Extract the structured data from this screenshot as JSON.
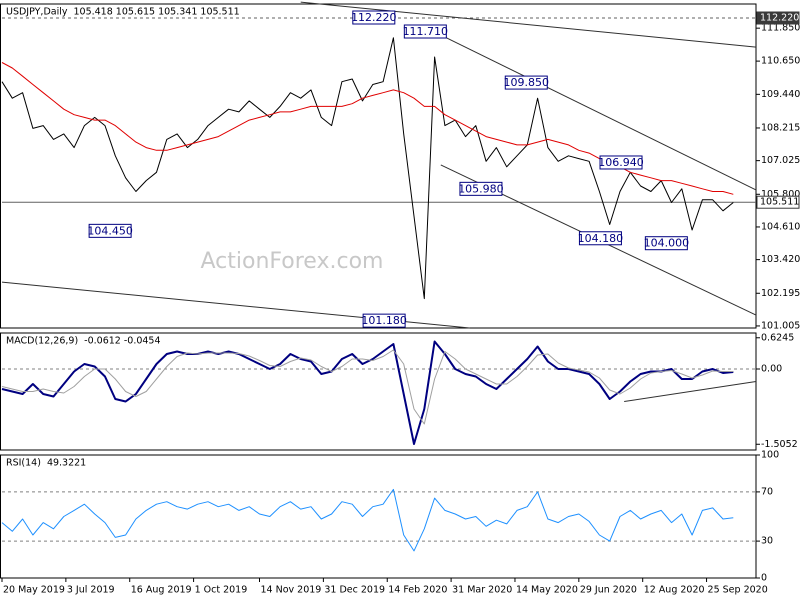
{
  "watermark": "ActionForex.com",
  "chart_data": [
    {
      "type": "line",
      "title": "USDJPY,Daily",
      "subtitle": "105.418 105.615 105.341 105.511",
      "xlim": [
        0,
        366
      ],
      "ylim": [
        100.93,
        112.73
      ],
      "x": [
        0,
        5,
        10,
        15,
        20,
        25,
        30,
        35,
        40,
        45,
        50,
        55,
        60,
        65,
        70,
        75,
        80,
        85,
        90,
        95,
        100,
        105,
        110,
        115,
        120,
        125,
        130,
        135,
        140,
        145,
        150,
        155,
        160,
        165,
        170,
        175,
        180,
        185,
        190,
        195,
        200,
        205,
        210,
        215,
        220,
        225,
        230,
        235,
        240,
        245,
        250,
        255,
        260,
        265,
        270,
        275,
        280,
        285,
        290,
        295,
        300,
        305,
        310,
        315,
        320,
        325,
        330,
        335,
        340,
        345,
        350,
        355
      ],
      "series": [
        {
          "color": "#000000",
          "width": 1,
          "values": [
            109.9,
            109.3,
            109.5,
            108.2,
            108.3,
            107.8,
            108.0,
            107.5,
            108.3,
            108.6,
            108.3,
            107.2,
            106.4,
            105.9,
            106.3,
            106.6,
            107.8,
            108.0,
            107.5,
            107.8,
            108.3,
            108.6,
            108.9,
            108.8,
            109.2,
            108.9,
            108.6,
            109.0,
            109.5,
            109.3,
            109.6,
            108.6,
            108.3,
            109.9,
            110.0,
            109.2,
            109.8,
            109.9,
            111.5,
            108.0,
            105.0,
            102.0,
            110.8,
            108.3,
            108.5,
            107.9,
            108.3,
            107.0,
            107.5,
            106.8,
            107.2,
            107.6,
            109.3,
            107.5,
            107.0,
            107.2,
            107.1,
            107.0,
            105.9,
            104.7,
            105.9,
            106.6,
            106.1,
            105.9,
            106.3,
            105.5,
            106.0,
            104.5,
            105.6,
            105.6,
            105.2,
            105.5
          ]
        },
        {
          "color": "#e00000",
          "width": 1,
          "values": [
            110.6,
            110.4,
            110.1,
            109.8,
            109.5,
            109.2,
            108.9,
            108.7,
            108.6,
            108.5,
            108.5,
            108.3,
            108.0,
            107.7,
            107.5,
            107.4,
            107.4,
            107.5,
            107.6,
            107.7,
            107.8,
            107.9,
            108.1,
            108.3,
            108.5,
            108.6,
            108.7,
            108.8,
            108.8,
            108.9,
            109.0,
            109.0,
            109.0,
            109.0,
            109.1,
            109.3,
            109.4,
            109.5,
            109.6,
            109.5,
            109.3,
            109.0,
            109.0,
            108.7,
            108.5,
            108.3,
            108.1,
            107.9,
            107.8,
            107.7,
            107.6,
            107.6,
            107.7,
            107.8,
            107.7,
            107.6,
            107.4,
            107.3,
            107.1,
            107.0,
            106.8,
            106.6,
            106.5,
            106.4,
            106.3,
            106.3,
            106.2,
            106.1,
            106.0,
            105.9,
            105.9,
            105.8
          ]
        }
      ],
      "yticks": [
        {
          "value": 111.85,
          "label": "111.850"
        },
        {
          "value": 110.65,
          "label": "110.650"
        },
        {
          "value": 109.44,
          "label": "109.440"
        },
        108.215,
        107.025,
        {
          "value": 105.8,
          "label": "105.800"
        },
        {
          "value": 104.61,
          "label": "104.610"
        },
        {
          "value": 103.42,
          "label": "103.420"
        },
        102.195,
        101.005
      ],
      "hlines": [
        {
          "value": 112.22,
          "label": "112.220",
          "style": "dashed",
          "boxed": true
        },
        {
          "value": 105.511,
          "style": "solid",
          "boxed": true
        }
      ],
      "annotations": [
        {
          "x": 180,
          "value": 112.22,
          "label": "112.220"
        },
        {
          "x": 205,
          "value": 111.71,
          "label": "111.710"
        },
        {
          "x": 254,
          "value": 109.85,
          "label": "109.850"
        },
        {
          "x": 300,
          "value": 106.94,
          "label": "106.940"
        },
        {
          "x": 232,
          "value": 105.98,
          "label": "105.980"
        },
        {
          "x": 290,
          "value": 104.18,
          "label": "104.180"
        },
        {
          "x": 322,
          "value": 104.0,
          "label": "104.000"
        },
        {
          "x": 52,
          "value": 104.45,
          "label": "104.450"
        },
        {
          "x": 185,
          "value": 101.18,
          "label": "101.180"
        }
      ],
      "trendlines": [
        {
          "x": [
            145,
            366
          ],
          "values": [
            112.8,
            111.16
          ]
        },
        {
          "x": [
            213,
            366
          ],
          "values": [
            111.6,
            105.96
          ]
        },
        {
          "x": [
            213,
            366
          ],
          "values": [
            106.87,
            101.4
          ]
        },
        {
          "x": [
            0,
            227
          ],
          "values": [
            102.6,
            100.93
          ]
        }
      ]
    },
    {
      "type": "line",
      "title": "MACD(12,26,9)",
      "subtitle": "-0.0612 -0.0454",
      "xlim": [
        0,
        366
      ],
      "ylim": [
        -1.62,
        0.72
      ],
      "x": [
        0,
        5,
        10,
        15,
        20,
        25,
        30,
        35,
        40,
        45,
        50,
        55,
        60,
        65,
        70,
        75,
        80,
        85,
        90,
        95,
        100,
        105,
        110,
        115,
        120,
        125,
        130,
        135,
        140,
        145,
        150,
        155,
        160,
        165,
        170,
        175,
        180,
        185,
        190,
        195,
        200,
        205,
        210,
        215,
        220,
        225,
        230,
        235,
        240,
        245,
        250,
        255,
        260,
        265,
        270,
        275,
        280,
        285,
        290,
        295,
        300,
        305,
        310,
        315,
        320,
        325,
        330,
        335,
        340,
        345,
        350,
        355
      ],
      "series": [
        {
          "color": "#000080",
          "width": 2,
          "values": [
            -0.4,
            -0.45,
            -0.5,
            -0.3,
            -0.5,
            -0.55,
            -0.3,
            -0.05,
            0.1,
            0.05,
            -0.15,
            -0.6,
            -0.65,
            -0.5,
            -0.2,
            0.1,
            0.3,
            0.35,
            0.3,
            0.3,
            0.35,
            0.3,
            0.35,
            0.3,
            0.2,
            0.1,
            0.0,
            0.1,
            0.3,
            0.2,
            0.15,
            -0.1,
            -0.05,
            0.2,
            0.3,
            0.1,
            0.2,
            0.35,
            0.5,
            -0.5,
            -1.5,
            -0.8,
            0.55,
            0.3,
            0.0,
            -0.1,
            -0.15,
            -0.3,
            -0.4,
            -0.2,
            0.0,
            0.2,
            0.45,
            0.15,
            0.0,
            0.0,
            -0.05,
            -0.1,
            -0.3,
            -0.6,
            -0.45,
            -0.25,
            -0.1,
            -0.05,
            -0.05,
            0.0,
            -0.2,
            -0.2,
            -0.05,
            0.0,
            -0.08,
            -0.06
          ]
        },
        {
          "color": "#a0a0a0",
          "width": 1,
          "values": [
            -0.35,
            -0.4,
            -0.45,
            -0.45,
            -0.4,
            -0.45,
            -0.48,
            -0.35,
            -0.15,
            0.0,
            0.0,
            -0.2,
            -0.45,
            -0.55,
            -0.45,
            -0.2,
            0.05,
            0.25,
            0.32,
            0.3,
            0.32,
            0.32,
            0.32,
            0.31,
            0.26,
            0.17,
            0.07,
            0.05,
            0.15,
            0.22,
            0.18,
            0.05,
            -0.05,
            0.05,
            0.2,
            0.2,
            0.17,
            0.25,
            0.38,
            0.1,
            -0.8,
            -1.1,
            -0.2,
            0.35,
            0.2,
            0.0,
            -0.1,
            -0.2,
            -0.3,
            -0.3,
            -0.15,
            0.05,
            0.28,
            0.3,
            0.12,
            0.02,
            -0.02,
            -0.06,
            -0.18,
            -0.42,
            -0.5,
            -0.38,
            -0.2,
            -0.08,
            -0.05,
            -0.03,
            -0.1,
            -0.18,
            -0.12,
            -0.04,
            -0.05,
            -0.05
          ]
        }
      ],
      "yticks": [
        0.6245,
        {
          "value": 0,
          "label": "0.00"
        },
        -1.5052
      ],
      "hlines": [
        {
          "value": 0,
          "style": "dashed"
        }
      ],
      "trendlines": [
        {
          "x": [
            302,
            366
          ],
          "values": [
            -0.65,
            -0.25
          ]
        }
      ]
    },
    {
      "type": "line",
      "title": "RSI(14)",
      "subtitle": "49.3221",
      "xlim": [
        0,
        366
      ],
      "ylim": [
        0,
        100
      ],
      "x": [
        0,
        5,
        10,
        15,
        20,
        25,
        30,
        35,
        40,
        45,
        50,
        55,
        60,
        65,
        70,
        75,
        80,
        85,
        90,
        95,
        100,
        105,
        110,
        115,
        120,
        125,
        130,
        135,
        140,
        145,
        150,
        155,
        160,
        165,
        170,
        175,
        180,
        185,
        190,
        195,
        200,
        205,
        210,
        215,
        220,
        225,
        230,
        235,
        240,
        245,
        250,
        255,
        260,
        265,
        270,
        275,
        280,
        285,
        290,
        295,
        300,
        305,
        310,
        315,
        320,
        325,
        330,
        335,
        340,
        345,
        350,
        355
      ],
      "series": [
        {
          "color": "#1e90ff",
          "width": 1,
          "values": [
            45,
            38,
            48,
            35,
            45,
            40,
            50,
            55,
            60,
            52,
            45,
            33,
            35,
            48,
            55,
            60,
            62,
            58,
            56,
            60,
            62,
            58,
            60,
            55,
            58,
            52,
            50,
            58,
            62,
            56,
            58,
            48,
            52,
            62,
            60,
            50,
            58,
            60,
            72,
            35,
            22,
            40,
            65,
            55,
            52,
            48,
            50,
            42,
            47,
            44,
            55,
            58,
            70,
            48,
            45,
            50,
            52,
            46,
            35,
            30,
            50,
            55,
            48,
            52,
            55,
            45,
            52,
            35,
            55,
            57,
            48,
            49
          ]
        }
      ],
      "yticks": [
        100,
        70,
        30,
        0
      ],
      "hlines": [
        {
          "value": 70,
          "style": "dashed"
        },
        {
          "value": 30,
          "style": "dashed"
        }
      ],
      "xticks": [
        {
          "value": 0,
          "label": "20 May 2019"
        },
        {
          "value": 31,
          "label": "3 Jul 2019"
        },
        {
          "value": 62,
          "label": "16 Aug 2019"
        },
        {
          "value": 93,
          "label": "1 Oct 2019"
        },
        {
          "value": 125,
          "label": "14 Nov 2019"
        },
        {
          "value": 156,
          "label": "31 Dec 2019"
        },
        {
          "value": 187,
          "label": "14 Feb 2020"
        },
        {
          "value": 218,
          "label": "31 Mar 2020"
        },
        {
          "value": 249,
          "label": "14 May 2020"
        },
        {
          "value": 280,
          "label": "29 Jun 2020"
        },
        {
          "value": 311,
          "label": "12 Aug 2020"
        },
        {
          "value": 342,
          "label": "25 Sep 2020"
        }
      ]
    }
  ]
}
